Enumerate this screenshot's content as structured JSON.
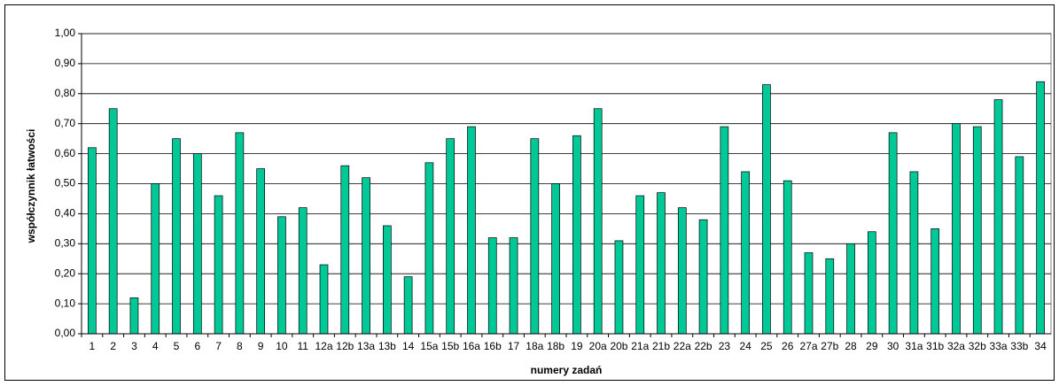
{
  "chart_data": {
    "type": "bar",
    "y_label": "współczynnik łatwości",
    "x_label": "numery zadań",
    "categories": [
      "1",
      "2",
      "3",
      "4",
      "5",
      "6",
      "7",
      "8",
      "9",
      "10",
      "11",
      "12a",
      "12b",
      "13a",
      "13b",
      "14",
      "15a",
      "15b",
      "16a",
      "16b",
      "17",
      "18a",
      "18b",
      "19",
      "20a",
      "20b",
      "21a",
      "21b",
      "22a",
      "22b",
      "23",
      "24",
      "25",
      "26",
      "27a",
      "27b",
      "28",
      "29",
      "30",
      "31a",
      "31b",
      "32a",
      "32b",
      "33a",
      "33b",
      "34"
    ],
    "values": [
      0.62,
      0.75,
      0.12,
      0.5,
      0.65,
      0.6,
      0.46,
      0.67,
      0.55,
      0.39,
      0.42,
      0.23,
      0.56,
      0.52,
      0.36,
      0.19,
      0.57,
      0.65,
      0.69,
      0.32,
      0.32,
      0.65,
      0.5,
      0.66,
      0.75,
      0.31,
      0.46,
      0.47,
      0.42,
      0.38,
      0.69,
      0.54,
      0.83,
      0.51,
      0.27,
      0.25,
      0.3,
      0.34,
      0.67,
      0.54,
      0.35,
      0.7,
      0.69,
      0.78,
      0.59,
      0.84
    ],
    "color": "#00c896",
    "ylim": [
      0,
      1
    ],
    "yticks": [
      {
        "value": 0,
        "label": "0,00"
      },
      {
        "value": 0.1,
        "label": "0,10"
      },
      {
        "value": 0.2,
        "label": "0,20"
      },
      {
        "value": 0.3,
        "label": "0,30"
      },
      {
        "value": 0.4,
        "label": "0,40"
      },
      {
        "value": 0.5,
        "label": "0,50"
      },
      {
        "value": 0.6,
        "label": "0,60"
      },
      {
        "value": 0.7,
        "label": "0,70"
      },
      {
        "value": 0.8,
        "label": "0,80"
      },
      {
        "value": 0.9,
        "label": "0,90"
      },
      {
        "value": 1,
        "label": "1,00"
      }
    ],
    "grid": true
  }
}
